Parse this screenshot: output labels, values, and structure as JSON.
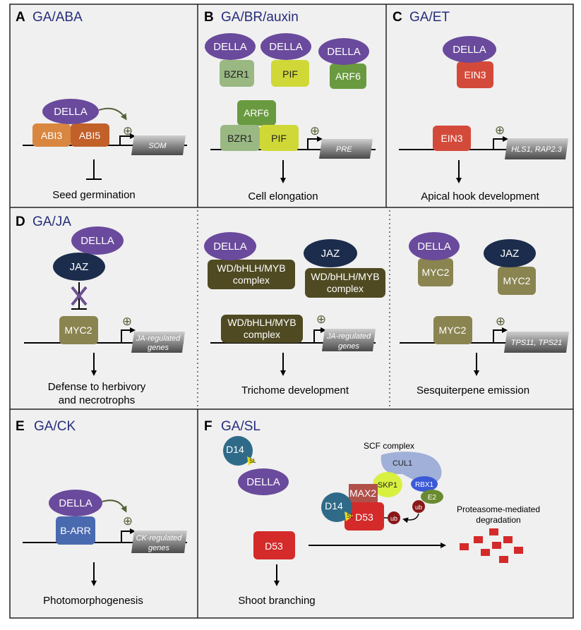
{
  "panels": {
    "A": {
      "letter": "A",
      "title": "GA/ABA",
      "della": "DELLA",
      "box1": "ABI3",
      "box2": "ABI5",
      "gene": "SOM",
      "outcome": "Seed germination"
    },
    "B": {
      "letter": "B",
      "title": "GA/BR/auxin",
      "della": "DELLA",
      "top1": "BZR1",
      "top2": "PIF",
      "top3": "ARF6",
      "arf6": "ARF6",
      "bzr1": "BZR1",
      "pif": "PIF",
      "gene": "PRE",
      "outcome": "Cell elongation"
    },
    "C": {
      "letter": "C",
      "title": "GA/ET",
      "della": "DELLA",
      "ein3_top": "EIN3",
      "ein3": "EIN3",
      "gene": "HLS1, RAP2.3",
      "outcome": "Apical hook development"
    },
    "D": {
      "letter": "D",
      "title": "GA/JA",
      "d1": {
        "della": "DELLA",
        "jaz": "JAZ",
        "myc2": "MYC2",
        "gene_l1": "JA-regulated",
        "gene_l2": "genes",
        "outcome_l1": "Defense to herbivory",
        "outcome_l2": "and necrotrophs"
      },
      "d2": {
        "della": "DELLA",
        "jaz": "JAZ",
        "cx_l1": "WD/bHLH/MYB",
        "cx_l2": "complex",
        "gene_l1": "JA-regulated",
        "gene_l2": "genes",
        "outcome": "Trichome development"
      },
      "d3": {
        "della": "DELLA",
        "jaz": "JAZ",
        "myc2": "MYC2",
        "gene": "TPS11, TPS21",
        "outcome": "Sesquiterpene emission"
      }
    },
    "E": {
      "letter": "E",
      "title": "GA/CK",
      "della": "DELLA",
      "barr": "B-ARR",
      "gene_l1": "CK-regulated",
      "gene_l2": "genes",
      "outcome": "Photomorphogenesis"
    },
    "F": {
      "letter": "F",
      "title": "GA/SL",
      "d14": "D14",
      "sl": "SL",
      "della": "DELLA",
      "scf": "SCF complex",
      "cul1": "CUL1",
      "skp1": "SKP1",
      "rbx1": "RBX1",
      "e2": "E2",
      "max2": "MAX2",
      "d53": "D53",
      "ub": "ub",
      "deg_l1": "Proteasome-mediated",
      "deg_l2": "degradation",
      "outcome": "Shoot branching"
    }
  },
  "plus_sign": "⊕",
  "colors": {
    "della": "#6a4a9c",
    "title": "#262d7a",
    "abi3": "#d98640",
    "abi5": "#c2602a",
    "jaz": "#1c2c4c",
    "myc2": "#8a8450",
    "complex": "#4f4a22",
    "ein3": "#d44a3a",
    "arf6": "#6a9a40",
    "bzr1": "#9ab882",
    "pif": "#d0d838",
    "barr": "#4a6ab0",
    "d53": "#d42a2a",
    "d14": "#2f6a88",
    "cul1": "#a0b0d8",
    "skp1": "#d8f040",
    "rbx1": "#3a5ad8",
    "e2": "#6a8a30",
    "max2": "#b0504a",
    "ub": "#8a1818",
    "panel_bg": "#f0f0f0"
  }
}
